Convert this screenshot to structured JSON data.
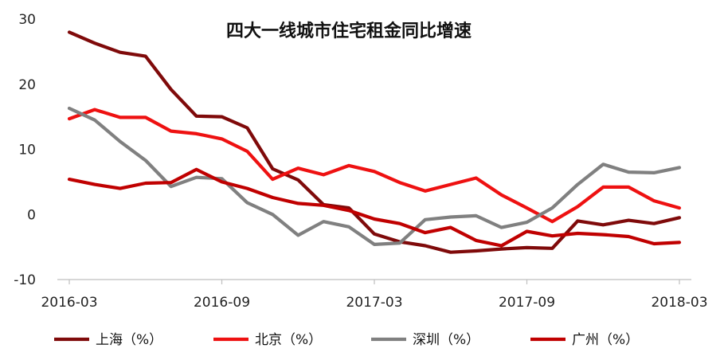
{
  "chart_data": {
    "type": "line",
    "title": "四大一线城市住宅租金同比增速",
    "xlabel": "",
    "ylabel": "",
    "ylim": [
      -10,
      30
    ],
    "yticks": [
      -10,
      0,
      10,
      20,
      30
    ],
    "xticks": [
      "2016-03",
      "2016-09",
      "2017-03",
      "2017-09",
      "2018-03"
    ],
    "x": [
      "2016-03",
      "2016-04",
      "2016-05",
      "2016-06",
      "2016-07",
      "2016-08",
      "2016-09",
      "2016-10",
      "2016-11",
      "2016-12",
      "2017-01",
      "2017-02",
      "2017-03",
      "2017-04",
      "2017-05",
      "2017-06",
      "2017-07",
      "2017-08",
      "2017-09",
      "2017-10",
      "2017-11",
      "2017-12",
      "2018-01",
      "2018-02",
      "2018-03"
    ],
    "grid": false,
    "legend_position": "bottom",
    "series": [
      {
        "name": "上海（%）",
        "color": "#7f0a0a",
        "values": [
          28.0,
          26.3,
          24.9,
          24.3,
          19.2,
          15.1,
          15.0,
          13.3,
          7.0,
          5.3,
          1.5,
          1.0,
          -3.0,
          -4.2,
          -4.8,
          -5.8,
          -5.6,
          -5.3,
          -5.1,
          -5.2,
          -1.0,
          -1.6,
          -0.9,
          -1.4,
          -0.5
        ]
      },
      {
        "name": "北京（%）",
        "color": "#ee1111",
        "values": [
          14.7,
          16.1,
          14.9,
          14.9,
          12.8,
          12.4,
          11.6,
          9.7,
          5.4,
          7.1,
          6.1,
          7.5,
          6.6,
          4.9,
          3.6,
          4.6,
          5.6,
          3.0,
          1.0,
          -1.1,
          1.2,
          4.2,
          4.2,
          2.1,
          1.0
        ]
      },
      {
        "name": "深圳（%）",
        "color": "#808080",
        "values": [
          16.3,
          14.5,
          11.2,
          8.3,
          4.3,
          5.7,
          5.5,
          1.8,
          0.0,
          -3.2,
          -1.1,
          -1.9,
          -4.6,
          -4.4,
          -0.8,
          -0.4,
          -0.2,
          -2.0,
          -1.2,
          1.0,
          4.6,
          7.7,
          6.5,
          6.4,
          7.2
        ]
      },
      {
        "name": "广州（%）",
        "color": "#c00000",
        "values": [
          5.4,
          4.6,
          4.0,
          4.8,
          4.9,
          6.9,
          5.0,
          4.0,
          2.6,
          1.7,
          1.4,
          0.6,
          -0.7,
          -1.4,
          -2.8,
          -2.0,
          -4.0,
          -4.8,
          -2.6,
          -3.3,
          -2.9,
          -3.1,
          -3.4,
          -4.5,
          -4.3
        ]
      }
    ]
  }
}
